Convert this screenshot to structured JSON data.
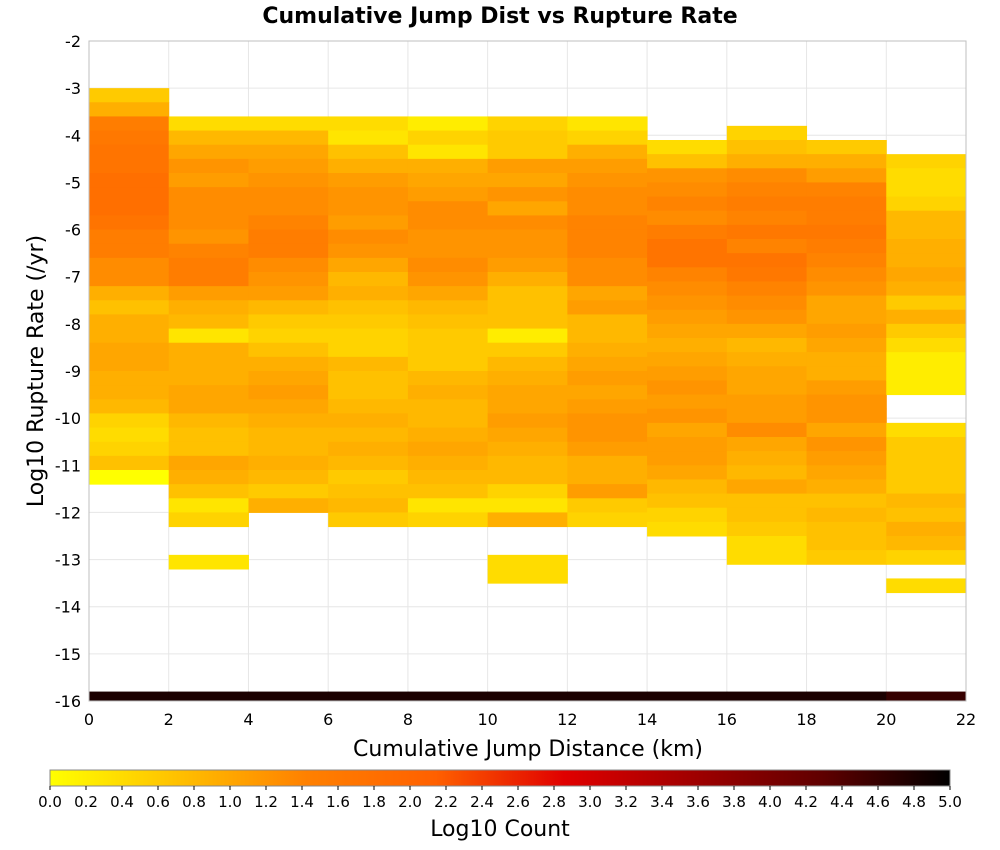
{
  "chart_data": {
    "type": "heatmap",
    "title": "Cumulative Jump Dist vs Rupture Rate",
    "xlabel": "Cumulative Jump Distance (km)",
    "ylabel": "Log10 Rupture Rate (/yr)",
    "xlim": [
      0,
      22
    ],
    "ylim": [
      -16,
      -2
    ],
    "x_ticks": [
      "0",
      "2",
      "4",
      "6",
      "8",
      "10",
      "12",
      "14",
      "16",
      "18",
      "20",
      "22"
    ],
    "y_ticks": [
      "-2",
      "-3",
      "-4",
      "-5",
      "-6",
      "-7",
      "-8",
      "-9",
      "-10",
      "-11",
      "-12",
      "-13",
      "-14",
      "-15",
      "-16"
    ],
    "grid": true,
    "bin_width_x": 2,
    "bin_height_y": 0.3,
    "colorbar": {
      "label": "Log10 Count",
      "min": 0.0,
      "max": 5.0,
      "ticks": [
        "0.0",
        "0.2",
        "0.4",
        "0.6",
        "0.8",
        "1.0",
        "1.2",
        "1.4",
        "1.6",
        "1.8",
        "2.0",
        "2.2",
        "2.4",
        "2.6",
        "2.8",
        "3.0",
        "3.2",
        "3.4",
        "3.6",
        "3.8",
        "4.0",
        "4.2",
        "4.4",
        "4.6",
        "4.8",
        "5.0"
      ],
      "colors": [
        "#ffff00",
        "#ffc000",
        "#ff8000",
        "#ff6000",
        "#e00000",
        "#a00000",
        "#600000",
        "#000000"
      ]
    },
    "columns": [
      {
        "x0": 0,
        "y_top": -3.0,
        "values": [
          0.6,
          0.9,
          1.5,
          1.6,
          1.7,
          1.7,
          1.8,
          1.8,
          1.8,
          1.7,
          1.5,
          1.5,
          1.3,
          1.3,
          0.9,
          0.7,
          0.9,
          0.9,
          1.0,
          1.0,
          0.9,
          0.9,
          0.8,
          0.5,
          0.4,
          0.5,
          0.7,
          0.0
        ]
      },
      {
        "x0": 2,
        "y_top": -3.6,
        "values": [
          0.4,
          0.8,
          1.0,
          1.2,
          1.1,
          1.3,
          1.3,
          1.3,
          1.2,
          1.4,
          1.5,
          1.5,
          1.1,
          0.9,
          0.8,
          0.3,
          0.9,
          0.9,
          0.9,
          1.0,
          1.0,
          0.8,
          0.7,
          0.7,
          1.0,
          0.9,
          0.7,
          0.3,
          0.5,
          null,
          null,
          0.3
        ]
      },
      {
        "x0": 4,
        "y_top": -3.6,
        "values": [
          0.4,
          0.8,
          1.0,
          1.1,
          1.2,
          1.3,
          1.3,
          1.4,
          1.5,
          1.5,
          1.3,
          1.2,
          1.1,
          0.8,
          0.6,
          0.5,
          0.7,
          0.9,
          1.0,
          1.1,
          1.0,
          0.9,
          0.8,
          0.8,
          0.9,
          0.8,
          0.6,
          0.9
        ]
      },
      {
        "x0": 6,
        "y_top": -3.6,
        "values": [
          0.4,
          0.3,
          0.7,
          0.9,
          1.1,
          1.2,
          1.2,
          1.1,
          1.3,
          1.2,
          1.0,
          0.8,
          0.9,
          0.7,
          0.6,
          0.5,
          0.5,
          0.8,
          0.7,
          0.7,
          0.8,
          0.9,
          0.8,
          0.9,
          0.8,
          0.6,
          0.7,
          0.8,
          0.6
        ]
      },
      {
        "x0": 8,
        "y_top": -3.6,
        "values": [
          0.2,
          0.5,
          0.3,
          0.9,
          1.0,
          1.1,
          1.3,
          1.3,
          1.2,
          1.2,
          1.3,
          1.2,
          1.0,
          0.8,
          0.7,
          0.6,
          0.6,
          0.6,
          0.8,
          0.9,
          0.8,
          0.8,
          0.9,
          1.0,
          0.9,
          0.8,
          0.7,
          0.3,
          0.5
        ]
      },
      {
        "x0": 10,
        "y_top": -3.6,
        "values": [
          0.5,
          0.6,
          0.6,
          1.1,
          1.0,
          1.2,
          1.0,
          1.3,
          1.2,
          1.2,
          1.1,
          0.9,
          0.7,
          0.7,
          0.7,
          0.2,
          0.6,
          0.8,
          0.9,
          1.0,
          1.0,
          1.1,
          1.0,
          0.9,
          0.8,
          0.8,
          0.5,
          0.3,
          0.9,
          null,
          null,
          0.4,
          0.4
        ]
      },
      {
        "x0": 12,
        "y_top": -3.6,
        "values": [
          0.3,
          0.5,
          0.9,
          1.1,
          1.2,
          1.3,
          1.3,
          1.4,
          1.4,
          1.4,
          1.3,
          1.3,
          1.0,
          1.1,
          0.8,
          0.8,
          0.9,
          1.0,
          1.1,
          1.0,
          1.1,
          1.2,
          1.2,
          1.1,
          0.9,
          0.9,
          1.1,
          0.6,
          0.5
        ]
      },
      {
        "x0": 14,
        "y_top": -4.1,
        "values": [
          0.4,
          0.7,
          1.2,
          1.3,
          1.4,
          1.3,
          1.5,
          1.7,
          1.7,
          1.4,
          1.3,
          1.2,
          1.1,
          1.0,
          0.9,
          1.0,
          1.1,
          1.2,
          1.1,
          1.2,
          1.0,
          1.1,
          1.1,
          1.0,
          0.8,
          0.7,
          0.5,
          0.4
        ]
      },
      {
        "x0": 16,
        "y_top": -3.8,
        "values": [
          0.5,
          0.7,
          0.9,
          1.3,
          1.4,
          1.5,
          1.4,
          1.6,
          1.4,
          1.7,
          1.6,
          1.4,
          1.3,
          1.2,
          1.0,
          0.8,
          0.9,
          1.0,
          1.0,
          1.1,
          1.1,
          1.3,
          1.0,
          0.9,
          0.8,
          1.0,
          0.7,
          0.7,
          0.6,
          0.4,
          0.4
        ]
      },
      {
        "x0": 18,
        "y_top": -4.1,
        "values": [
          0.6,
          0.9,
          1.1,
          1.4,
          1.5,
          1.5,
          1.6,
          1.5,
          1.4,
          1.3,
          1.2,
          1.0,
          1.0,
          1.1,
          1.0,
          0.9,
          0.9,
          1.1,
          1.2,
          1.2,
          1.0,
          1.2,
          1.1,
          1.0,
          0.9,
          0.7,
          0.8,
          0.7,
          0.7,
          0.6
        ]
      },
      {
        "x0": 20,
        "y_top": -4.4,
        "values": [
          0.5,
          0.4,
          0.4,
          0.5,
          0.8,
          0.8,
          0.9,
          0.9,
          1.0,
          0.9,
          0.6,
          0.9,
          0.6,
          0.4,
          0.2,
          0.2,
          0.2,
          null,
          null,
          0.4,
          0.6,
          0.6,
          0.6,
          0.6,
          0.8,
          0.7,
          0.9,
          0.8,
          0.5,
          null,
          0.4
        ]
      }
    ],
    "bottom_band": {
      "y0": -16.0,
      "y1": -15.8,
      "values_by_column": [
        4.8,
        4.8,
        4.8,
        4.8,
        4.8,
        4.8,
        4.8,
        4.8,
        4.8,
        4.8,
        4.6
      ]
    }
  }
}
